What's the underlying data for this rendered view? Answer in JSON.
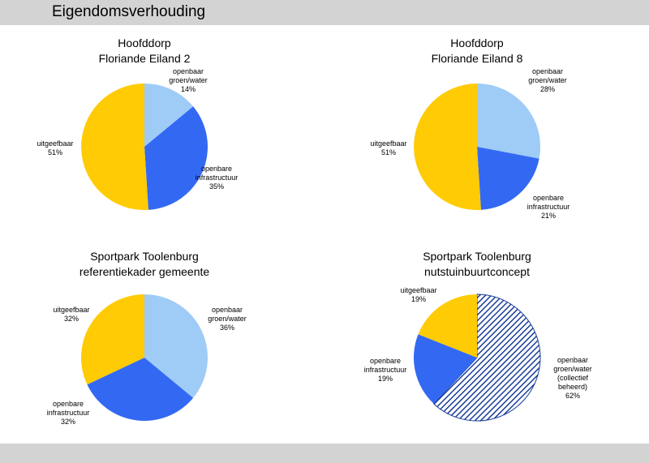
{
  "page": {
    "title": "Eigendomsverhouding"
  },
  "colors": {
    "openbaar_groen_water": "#9fcbf7",
    "openbare_infrastructuur": "#3369f2",
    "uitgeefbaar": "#ffcb05",
    "hatch_line": "#1a3e99",
    "outline": "#000000"
  },
  "chart_data": [
    {
      "type": "pie",
      "title": [
        "Hoofddorp",
        "Floriande Eiland 2"
      ],
      "slices": [
        {
          "label": [
            "openbaar",
            "groen/water"
          ],
          "pct_label": "14%",
          "value": 14,
          "color_key": "openbaar_groen_water"
        },
        {
          "label": [
            "openbare",
            "infrastructuur"
          ],
          "pct_label": "35%",
          "value": 35,
          "color_key": "openbare_infrastructuur"
        },
        {
          "label": [
            "uitgeefbaar"
          ],
          "pct_label": "51%",
          "value": 51,
          "color_key": "uitgeefbaar"
        }
      ]
    },
    {
      "type": "pie",
      "title": [
        "Hoofddorp",
        "Floriande Eiland 8"
      ],
      "slices": [
        {
          "label": [
            "openbaar",
            "groen/water"
          ],
          "pct_label": "28%",
          "value": 28,
          "color_key": "openbaar_groen_water"
        },
        {
          "label": [
            "openbare",
            "infrastructuur"
          ],
          "pct_label": "21%",
          "value": 21,
          "color_key": "openbare_infrastructuur"
        },
        {
          "label": [
            "uitgeefbaar"
          ],
          "pct_label": "51%",
          "value": 51,
          "color_key": "uitgeefbaar"
        }
      ]
    },
    {
      "type": "pie",
      "title": [
        "Sportpark Toolenburg",
        "referentiekader gemeente"
      ],
      "slices": [
        {
          "label": [
            "openbaar",
            "groen/water"
          ],
          "pct_label": "36%",
          "value": 36,
          "color_key": "openbaar_groen_water"
        },
        {
          "label": [
            "openbare",
            "infrastructuur"
          ],
          "pct_label": "32%",
          "value": 32,
          "color_key": "openbare_infrastructuur"
        },
        {
          "label": [
            "uitgeefbaar"
          ],
          "pct_label": "32%",
          "value": 32,
          "color_key": "uitgeefbaar"
        }
      ]
    },
    {
      "type": "pie",
      "title": [
        "Sportpark Toolenburg",
        "nutstuinbuurtconcept"
      ],
      "slices": [
        {
          "label": [
            "openbaar",
            "groen/water",
            "(collectief",
            "beheerd)"
          ],
          "pct_label": "62%",
          "value": 62,
          "color_key": "openbaar_groen_water",
          "pattern": "hatch"
        },
        {
          "label": [
            "openbare",
            "infrastructuur"
          ],
          "pct_label": "19%",
          "value": 19,
          "color_key": "openbare_infrastructuur"
        },
        {
          "label": [
            "uitgeefbaar"
          ],
          "pct_label": "19%",
          "value": 19,
          "color_key": "uitgeefbaar"
        }
      ]
    }
  ]
}
